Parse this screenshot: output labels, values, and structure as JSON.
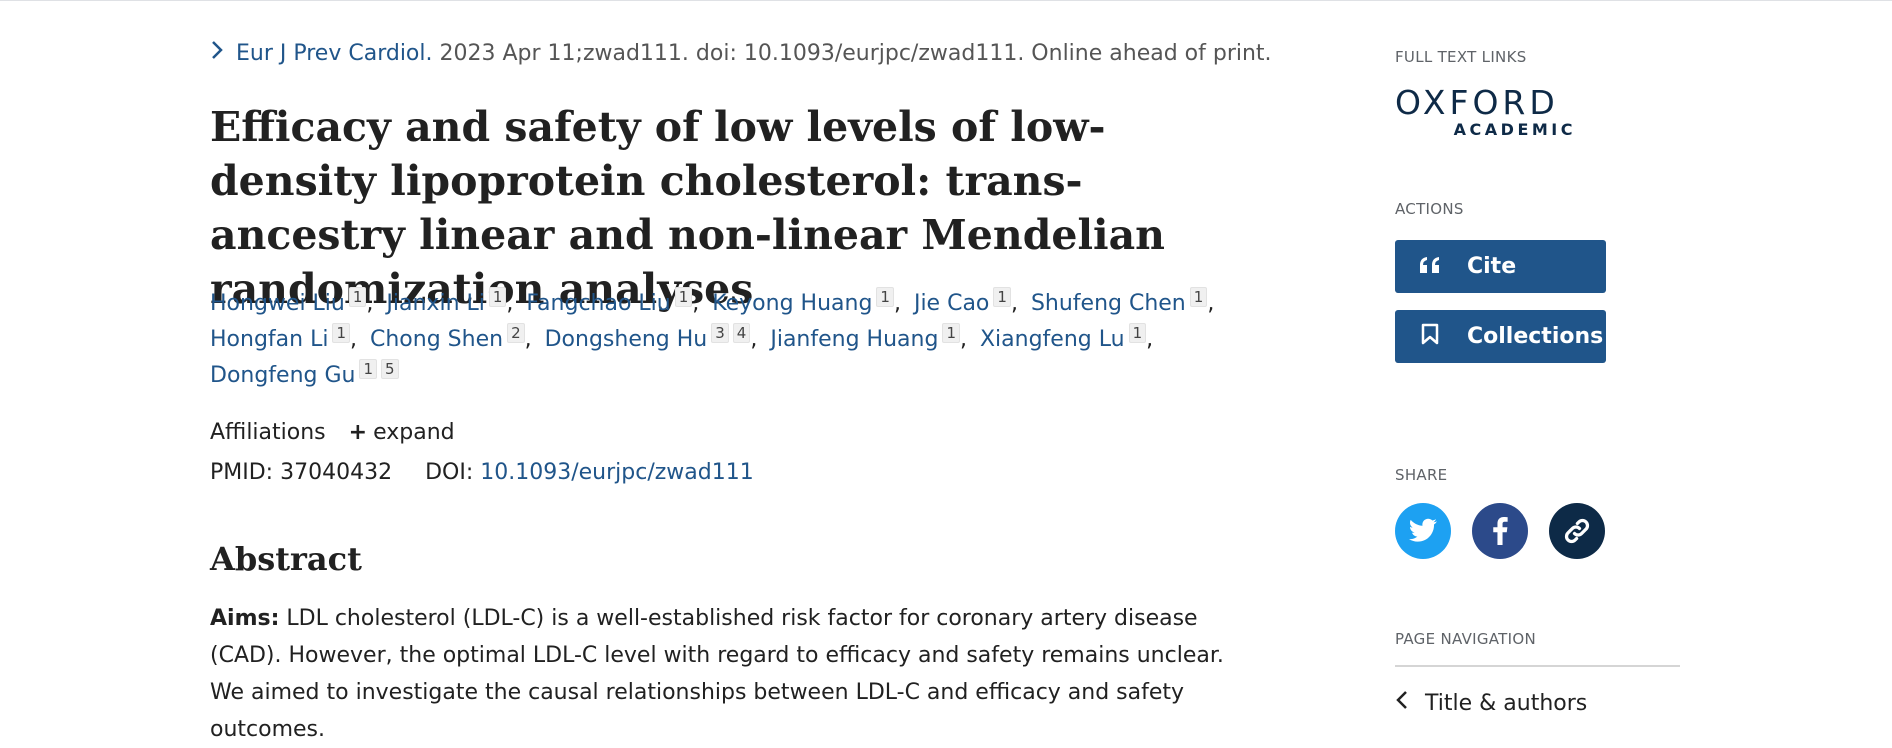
{
  "citation": {
    "journal": "Eur J Prev Cardiol.",
    "details": "2023 Apr 11;zwad111. doi: 10.1093/eurjpc/zwad111. Online ahead of print."
  },
  "title": "Efficacy and safety of low levels of low-density lipoprotein cholesterol: trans-ancestry linear and non-linear Mendelian randomization analyses",
  "authors": [
    {
      "name": "Hongwei Liu",
      "affs": [
        "1"
      ]
    },
    {
      "name": "Jianxin Li",
      "affs": [
        "1"
      ]
    },
    {
      "name": "Fangchao Liu",
      "affs": [
        "1"
      ]
    },
    {
      "name": "Keyong Huang",
      "affs": [
        "1"
      ]
    },
    {
      "name": "Jie Cao",
      "affs": [
        "1"
      ]
    },
    {
      "name": "Shufeng Chen",
      "affs": [
        "1"
      ]
    },
    {
      "name": "Hongfan Li",
      "affs": [
        "1"
      ]
    },
    {
      "name": "Chong Shen",
      "affs": [
        "2"
      ]
    },
    {
      "name": "Dongsheng Hu",
      "affs": [
        "3",
        "4"
      ]
    },
    {
      "name": "Jianfeng Huang",
      "affs": [
        "1"
      ]
    },
    {
      "name": "Xiangfeng Lu",
      "affs": [
        "1"
      ]
    },
    {
      "name": "Dongfeng Gu",
      "affs": [
        "1",
        "5"
      ]
    }
  ],
  "affiliations": {
    "label": "Affiliations",
    "expand": "expand"
  },
  "ids": {
    "pmid_label": "PMID:",
    "pmid": "37040432",
    "doi_label": "DOI:",
    "doi": "10.1093/eurjpc/zwad111"
  },
  "abstract": {
    "heading": "Abstract",
    "aims_label": "Aims:",
    "aims_text": "LDL cholesterol (LDL-C) is a well-established risk factor for coronary artery disease (CAD). However, the optimal LDL-C level with regard to efficacy and safety remains unclear. We aimed to investigate the causal relationships between LDL-C and efficacy and safety outcomes."
  },
  "sidebar": {
    "full_text_heading": "FULL TEXT LINKS",
    "publisher_logo": {
      "line1": "OXFORD",
      "line2": "ACADEMIC"
    },
    "actions_heading": "ACTIONS",
    "cite_label": "Cite",
    "collections_label": "Collections",
    "share_heading": "SHARE",
    "share_icons": [
      "twitter-icon",
      "facebook-icon",
      "link-icon"
    ],
    "page_nav_heading": "PAGE NAVIGATION",
    "page_nav_item": "Title & authors"
  },
  "colors": {
    "link": "#20558a",
    "button": "#20558a",
    "twitter": "#1da1f2",
    "facebook": "#2c4a8a",
    "permalink": "#0d2a47"
  }
}
